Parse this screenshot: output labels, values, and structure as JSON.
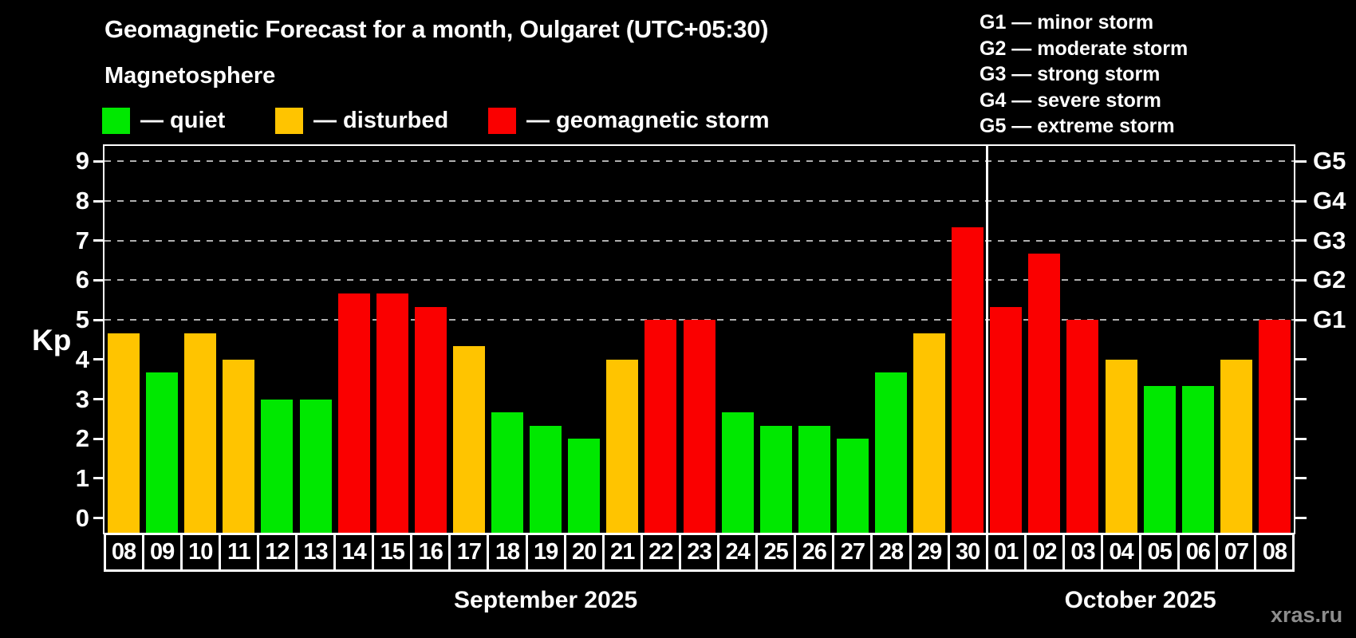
{
  "page": {
    "title": "Geomagnetic Forecast for a month, Oulgaret (UTC+05:30)",
    "subtitle": "Magnetosphere",
    "watermark": "xras.ru"
  },
  "colors": {
    "quiet": "#00e800",
    "disturbed": "#ffc400",
    "storm": "#fa0000",
    "grid": "#b0b0b0",
    "frame": "#ffffff",
    "watermark": "#8d8d8d"
  },
  "legend": {
    "items": [
      {
        "status": "quiet",
        "label": "— quiet"
      },
      {
        "status": "disturbed",
        "label": "— disturbed"
      },
      {
        "status": "storm",
        "label": "— geomagnetic storm"
      }
    ]
  },
  "g_legend": {
    "items": [
      {
        "label": "G1 — minor storm"
      },
      {
        "label": "G2 — moderate storm"
      },
      {
        "label": "G3 — strong storm"
      },
      {
        "label": "G4 — severe storm"
      },
      {
        "label": "G5 — extreme storm"
      }
    ]
  },
  "axes": {
    "kp_label": "Kp",
    "y_ticks": [
      0,
      1,
      2,
      3,
      4,
      5,
      6,
      7,
      8,
      9
    ],
    "g_ticks": [
      {
        "label": "G1",
        "kp": 5
      },
      {
        "label": "G2",
        "kp": 6
      },
      {
        "label": "G3",
        "kp": 7
      },
      {
        "label": "G4",
        "kp": 8
      },
      {
        "label": "G5",
        "kp": 9
      }
    ]
  },
  "chart_data": {
    "type": "bar",
    "title": "Geomagnetic Forecast for a month, Oulgaret (UTC+05:30)",
    "xlabel": "",
    "ylabel": "Kp",
    "ylim": [
      -0.4,
      9.4
    ],
    "grid_on": true,
    "grid_levels_kp": [
      5,
      6,
      7,
      8,
      9
    ],
    "months": [
      {
        "label": "September 2025",
        "days": 23
      },
      {
        "label": "October 2025",
        "days": 8
      }
    ],
    "days": [
      {
        "day": "08",
        "kp": 4.67,
        "status": "disturbed"
      },
      {
        "day": "09",
        "kp": 3.67,
        "status": "quiet"
      },
      {
        "day": "10",
        "kp": 4.67,
        "status": "disturbed"
      },
      {
        "day": "11",
        "kp": 4.0,
        "status": "disturbed"
      },
      {
        "day": "12",
        "kp": 3.0,
        "status": "quiet"
      },
      {
        "day": "13",
        "kp": 3.0,
        "status": "quiet"
      },
      {
        "day": "14",
        "kp": 5.67,
        "status": "storm"
      },
      {
        "day": "15",
        "kp": 5.67,
        "status": "storm"
      },
      {
        "day": "16",
        "kp": 5.33,
        "status": "storm"
      },
      {
        "day": "17",
        "kp": 4.33,
        "status": "disturbed"
      },
      {
        "day": "18",
        "kp": 2.67,
        "status": "quiet"
      },
      {
        "day": "19",
        "kp": 2.33,
        "status": "quiet"
      },
      {
        "day": "20",
        "kp": 2.0,
        "status": "quiet"
      },
      {
        "day": "21",
        "kp": 4.0,
        "status": "disturbed"
      },
      {
        "day": "22",
        "kp": 5.0,
        "status": "storm"
      },
      {
        "day": "23",
        "kp": 5.0,
        "status": "storm"
      },
      {
        "day": "24",
        "kp": 2.67,
        "status": "quiet"
      },
      {
        "day": "25",
        "kp": 2.33,
        "status": "quiet"
      },
      {
        "day": "26",
        "kp": 2.33,
        "status": "quiet"
      },
      {
        "day": "27",
        "kp": 2.0,
        "status": "quiet"
      },
      {
        "day": "28",
        "kp": 3.67,
        "status": "quiet"
      },
      {
        "day": "29",
        "kp": 4.67,
        "status": "disturbed"
      },
      {
        "day": "30",
        "kp": 7.33,
        "status": "storm"
      },
      {
        "day": "01",
        "kp": 5.33,
        "status": "storm"
      },
      {
        "day": "02",
        "kp": 6.67,
        "status": "storm"
      },
      {
        "day": "03",
        "kp": 5.0,
        "status": "storm"
      },
      {
        "day": "04",
        "kp": 4.0,
        "status": "disturbed"
      },
      {
        "day": "05",
        "kp": 3.33,
        "status": "quiet"
      },
      {
        "day": "06",
        "kp": 3.33,
        "status": "quiet"
      },
      {
        "day": "07",
        "kp": 4.0,
        "status": "disturbed"
      },
      {
        "day": "08",
        "kp": 5.0,
        "status": "storm"
      }
    ]
  }
}
